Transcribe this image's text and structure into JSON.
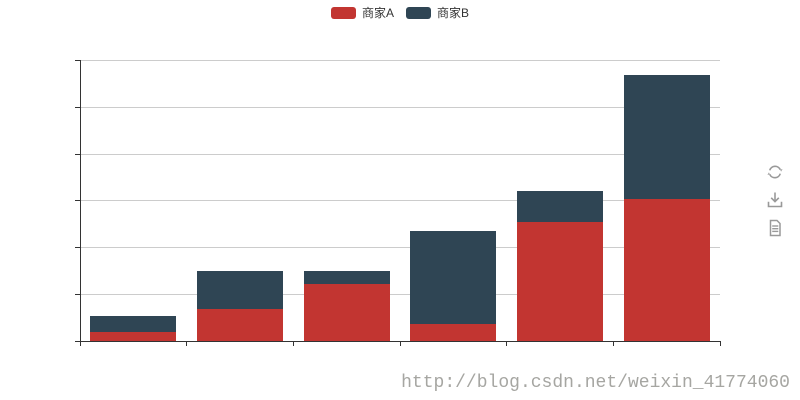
{
  "chart": {
    "background_color": "#ffffff",
    "gridline_color": "#cccccc",
    "axis_color": "#333333"
  },
  "legend": {
    "position": "top-center",
    "items": [
      {
        "label": "商家A",
        "color": "#c23531"
      },
      {
        "label": "商家B",
        "color": "#2f4554"
      }
    ]
  },
  "toolbox": {
    "icon_color": "#999999",
    "icons": [
      "restore-icon",
      "save-as-image-icon",
      "data-view-icon"
    ]
  },
  "watermark": {
    "text": "http://blog.csdn.net/weixin_41774060",
    "color": "#a6a6a2"
  },
  "chart_data": {
    "type": "bar",
    "stacked": true,
    "categories": [
      "",
      "",
      "",
      "",
      "",
      ""
    ],
    "series": [
      {
        "name": "商家A",
        "color": "#c23531",
        "values": [
          10,
          34,
          61,
          18,
          127,
          152
        ]
      },
      {
        "name": "商家B",
        "color": "#2f4554",
        "values": [
          17,
          41,
          14,
          100,
          33,
          133
        ]
      }
    ],
    "ylim": [
      0,
      300
    ],
    "y_gridline_step": 50,
    "grid": true,
    "legend_position": "top-center",
    "axis_tick_labels_visible": false
  }
}
